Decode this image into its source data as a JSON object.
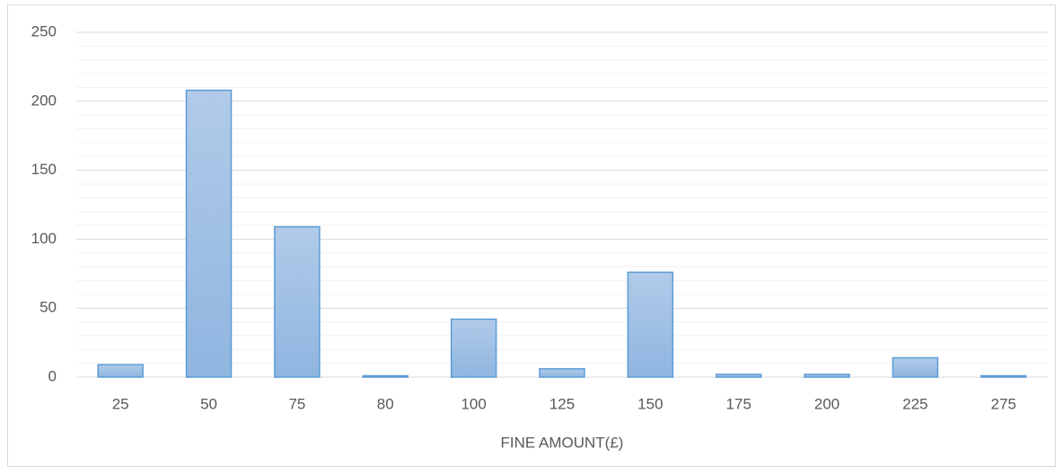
{
  "chart_data": {
    "type": "bar",
    "x_label": "FINE AMOUNT(£)",
    "categories": [
      "25",
      "50",
      "75",
      "80",
      "100",
      "125",
      "150",
      "175",
      "200",
      "225",
      "275"
    ],
    "values": [
      9,
      208,
      109,
      1,
      42,
      6,
      76,
      2,
      2,
      14,
      1
    ],
    "color": "#5b9bd5",
    "ylim": [
      0,
      250
    ],
    "yticks": [
      0,
      50,
      100,
      150,
      200,
      250
    ],
    "yminorticks": [
      10,
      20,
      30,
      40,
      60,
      70,
      80,
      90,
      110,
      120,
      130,
      140,
      160,
      170,
      180,
      190,
      210,
      220,
      230,
      240
    ],
    "grid": true
  }
}
